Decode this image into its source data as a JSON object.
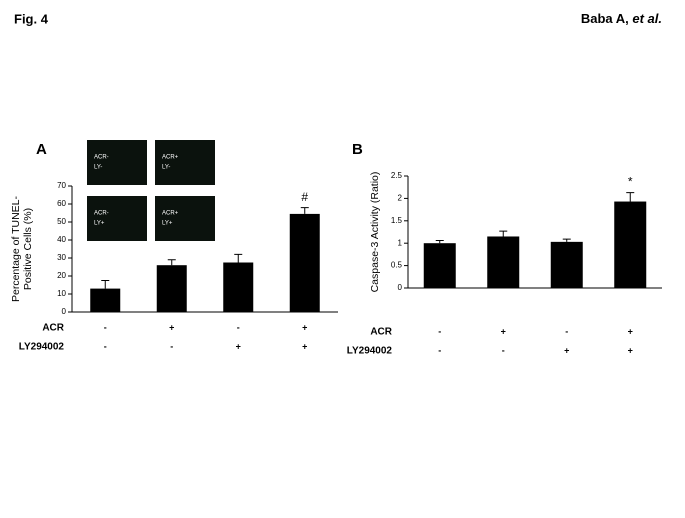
{
  "header": {
    "figure": "Fig. 4",
    "authors": "Baba A, ",
    "authors_italic": "et al."
  },
  "chart_data": [
    {
      "type": "bar",
      "panel": "A",
      "ylabel": [
        "Percentage of TUNEL-",
        "Positive  Cells (%)"
      ],
      "values": [
        13,
        26,
        27.5,
        54.5
      ],
      "errors": [
        4.5,
        3,
        4.5,
        3.5
      ],
      "color": "#000000",
      "ylim": [
        0,
        70
      ],
      "yticks": [
        0,
        10,
        20,
        30,
        40,
        50,
        60,
        70
      ],
      "annotations": [
        null,
        null,
        null,
        "#"
      ],
      "rows": [
        {
          "name": "ACR",
          "values": [
            "-",
            "+",
            "-",
            "+"
          ]
        },
        {
          "name": "LY294002",
          "values": [
            "-",
            "-",
            "+",
            "+"
          ]
        }
      ],
      "insets": [
        [
          "ACR-",
          "LY-"
        ],
        [
          "ACR+",
          "LY-"
        ],
        [
          "ACR-",
          "LY+"
        ],
        [
          "ACR+",
          "LY+"
        ]
      ]
    },
    {
      "type": "bar",
      "panel": "B",
      "ylabel": [
        "Caspase-3 Activity (Ratio)"
      ],
      "values": [
        1.0,
        1.15,
        1.03,
        1.93
      ],
      "errors": [
        0.06,
        0.12,
        0.06,
        0.2
      ],
      "color": "#000000",
      "ylim": [
        0,
        2.5
      ],
      "yticks": [
        0,
        0.5,
        1,
        1.5,
        2,
        2.5
      ],
      "annotations": [
        null,
        null,
        null,
        "*"
      ],
      "rows": [
        {
          "name": "ACR",
          "values": [
            "-",
            "+",
            "-",
            "+"
          ]
        },
        {
          "name": "LY294002",
          "values": [
            "-",
            "-",
            "+",
            "+"
          ]
        }
      ]
    }
  ]
}
